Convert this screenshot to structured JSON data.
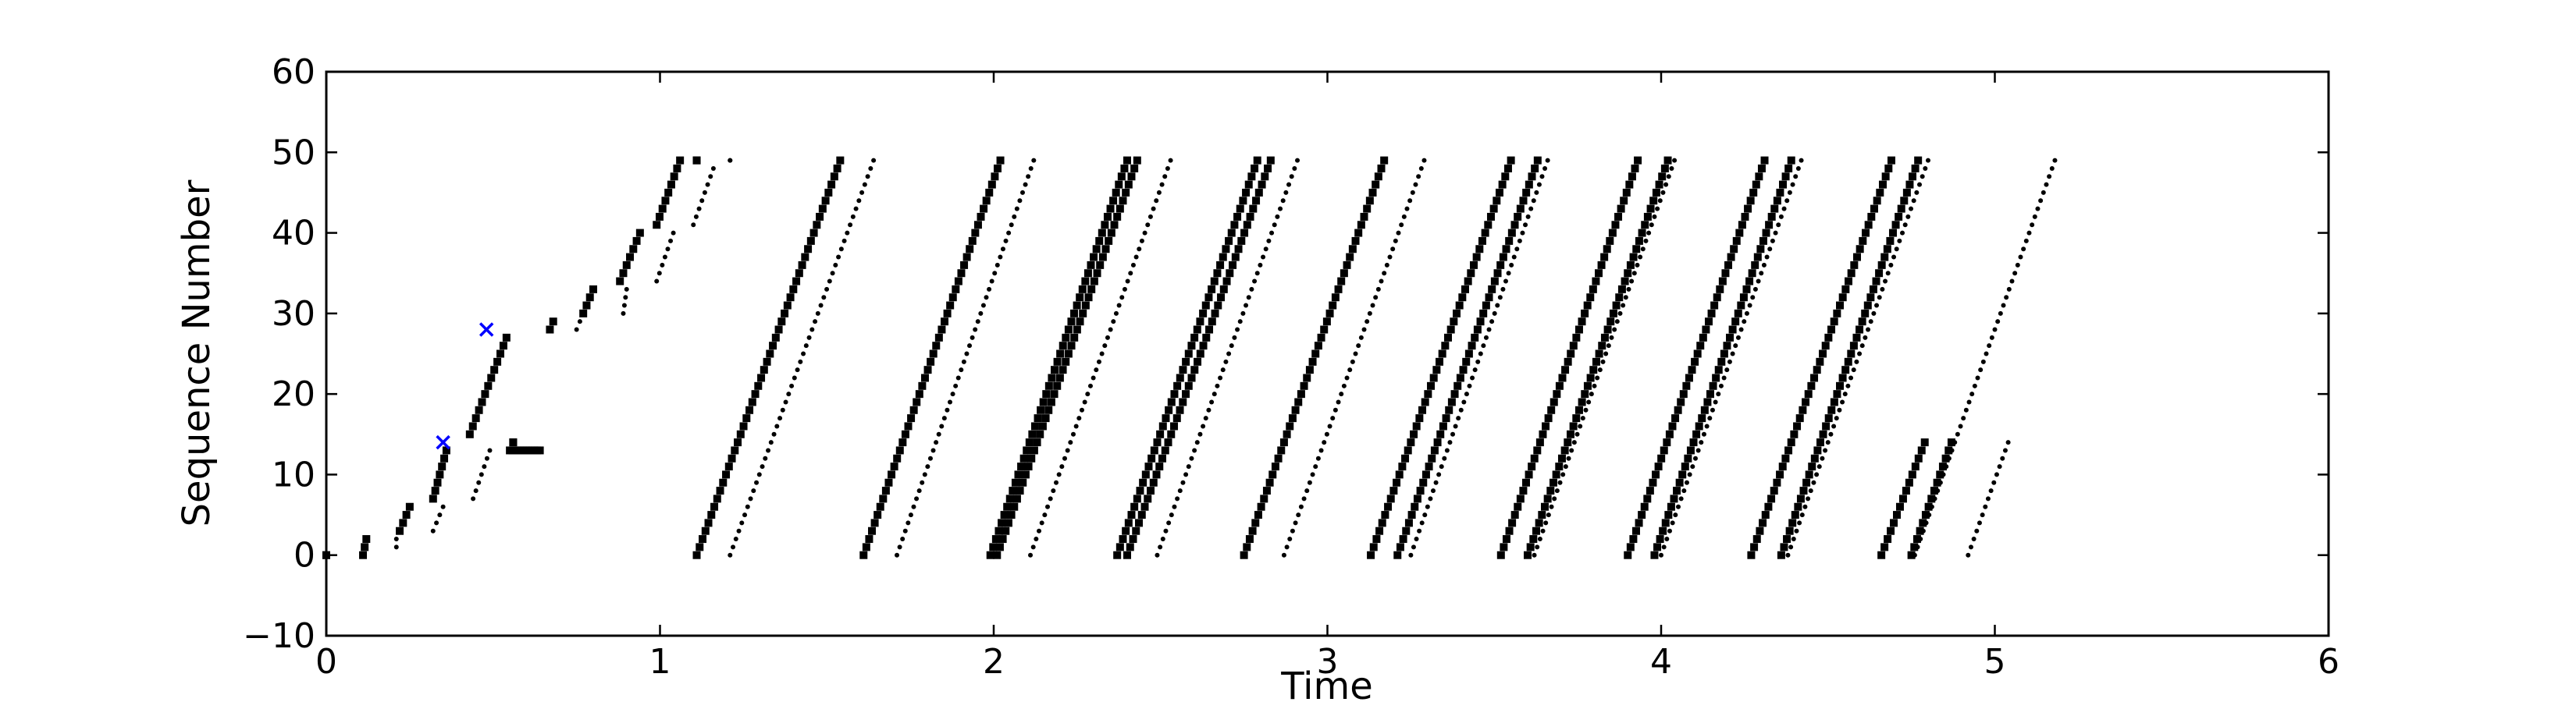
{
  "chart_data": {
    "type": "scatter",
    "title": "",
    "xlabel": "Time",
    "ylabel": "Sequence Number",
    "xlim": [
      0,
      6
    ],
    "ylim": [
      -10,
      60
    ],
    "xticks": [
      0,
      1,
      2,
      3,
      4,
      5,
      6
    ],
    "yticks": [
      -10,
      0,
      10,
      20,
      30,
      40,
      50,
      60
    ],
    "xtick_labels": [
      "0",
      "1",
      "2",
      "3",
      "4",
      "5",
      "6"
    ],
    "ytick_labels": [
      "−10",
      "0",
      "10",
      "20",
      "30",
      "40",
      "50",
      "60"
    ],
    "grid": false,
    "legend": "none",
    "colors": {
      "sent": "#000000",
      "ack": "#000000",
      "loss": "#0000ff"
    },
    "series": [
      {
        "marker": "square",
        "segments": [
          {
            "x": [
              0.0,
              0.0
            ],
            "y": [
              0,
              0
            ]
          },
          {
            "x": [
              0.11,
              0.12
            ],
            "y": [
              0,
              2
            ]
          },
          {
            "x": [
              0.22,
              0.25
            ],
            "y": [
              3,
              6
            ]
          },
          {
            "x": [
              0.32,
              0.36
            ],
            "y": [
              7,
              13
            ]
          },
          {
            "x": [
              0.43,
              0.54
            ],
            "y": [
              15,
              27
            ]
          },
          {
            "x": [
              0.56,
              0.56
            ],
            "y": [
              14,
              14
            ]
          },
          {
            "x": [
              0.55,
              0.64
            ],
            "y": [
              13,
              13
            ]
          },
          {
            "x": [
              0.67,
              0.68
            ],
            "y": [
              28,
              29
            ]
          },
          {
            "x": [
              0.77,
              0.8
            ],
            "y": [
              30,
              33
            ]
          },
          {
            "x": [
              0.88,
              0.94
            ],
            "y": [
              34,
              40
            ]
          },
          {
            "x": [
              0.99,
              1.06
            ],
            "y": [
              41,
              49
            ]
          },
          {
            "x": [
              1.11,
              1.11
            ],
            "y": [
              49,
              49
            ]
          },
          {
            "x": [
              1.11,
              1.54
            ],
            "y": [
              0,
              49
            ]
          },
          {
            "x": [
              1.61,
              2.02
            ],
            "y": [
              0,
              49
            ]
          },
          {
            "x": [
              1.99,
              2.4
            ],
            "y": [
              0,
              49
            ]
          },
          {
            "x": [
              2.01,
              2.43
            ],
            "y": [
              0,
              49
            ]
          },
          {
            "x": [
              2.37,
              2.79
            ],
            "y": [
              0,
              49
            ]
          },
          {
            "x": [
              2.4,
              2.83
            ],
            "y": [
              0,
              49
            ]
          },
          {
            "x": [
              2.75,
              3.17
            ],
            "y": [
              0,
              49
            ]
          },
          {
            "x": [
              3.13,
              3.55
            ],
            "y": [
              0,
              49
            ]
          },
          {
            "x": [
              3.21,
              3.63
            ],
            "y": [
              0,
              49
            ]
          },
          {
            "x": [
              3.52,
              3.93
            ],
            "y": [
              0,
              49
            ]
          },
          {
            "x": [
              3.6,
              4.02
            ],
            "y": [
              0,
              49
            ]
          },
          {
            "x": [
              3.9,
              4.31
            ],
            "y": [
              0,
              49
            ]
          },
          {
            "x": [
              3.98,
              4.39
            ],
            "y": [
              0,
              49
            ]
          },
          {
            "x": [
              4.27,
              4.69
            ],
            "y": [
              0,
              49
            ]
          },
          {
            "x": [
              4.36,
              4.77
            ],
            "y": [
              0,
              49
            ]
          },
          {
            "x": [
              4.66,
              4.79
            ],
            "y": [
              0,
              14
            ]
          },
          {
            "x": [
              4.75,
              4.87
            ],
            "y": [
              0,
              14
            ]
          }
        ]
      },
      {
        "marker": "dot",
        "segments": [
          {
            "x": [
              0.21,
              0.21
            ],
            "y": [
              1,
              2
            ]
          },
          {
            "x": [
              0.32,
              0.35
            ],
            "y": [
              3,
              6
            ]
          },
          {
            "x": [
              0.44,
              0.49
            ],
            "y": [
              7,
              13
            ]
          },
          {
            "x": [
              0.75,
              0.76
            ],
            "y": [
              28,
              29
            ]
          },
          {
            "x": [
              0.89,
              0.9
            ],
            "y": [
              30,
              33
            ]
          },
          {
            "x": [
              0.99,
              1.04
            ],
            "y": [
              34,
              40
            ]
          },
          {
            "x": [
              1.1,
              1.16
            ],
            "y": [
              41,
              48
            ]
          },
          {
            "x": [
              1.21,
              1.21
            ],
            "y": [
              49,
              49
            ]
          },
          {
            "x": [
              1.21,
              1.64
            ],
            "y": [
              0,
              49
            ]
          },
          {
            "x": [
              1.71,
              2.12
            ],
            "y": [
              0,
              49
            ]
          },
          {
            "x": [
              2.11,
              2.53
            ],
            "y": [
              0,
              49
            ]
          },
          {
            "x": [
              2.49,
              2.91
            ],
            "y": [
              0,
              49
            ]
          },
          {
            "x": [
              2.87,
              3.29
            ],
            "y": [
              0,
              49
            ]
          },
          {
            "x": [
              3.25,
              3.66
            ],
            "y": [
              0,
              49
            ]
          },
          {
            "x": [
              3.62,
              4.04
            ],
            "y": [
              0,
              49
            ]
          },
          {
            "x": [
              4.0,
              4.42
            ],
            "y": [
              0,
              49
            ]
          },
          {
            "x": [
              4.38,
              4.8
            ],
            "y": [
              0,
              49
            ]
          },
          {
            "x": [
              4.76,
              5.18
            ],
            "y": [
              0,
              49
            ]
          },
          {
            "x": [
              4.92,
              5.04
            ],
            "y": [
              0,
              14
            ]
          }
        ]
      },
      {
        "marker": "x",
        "points": [
          {
            "x": 0.35,
            "y": 14
          },
          {
            "x": 0.48,
            "y": 28
          }
        ]
      }
    ]
  }
}
